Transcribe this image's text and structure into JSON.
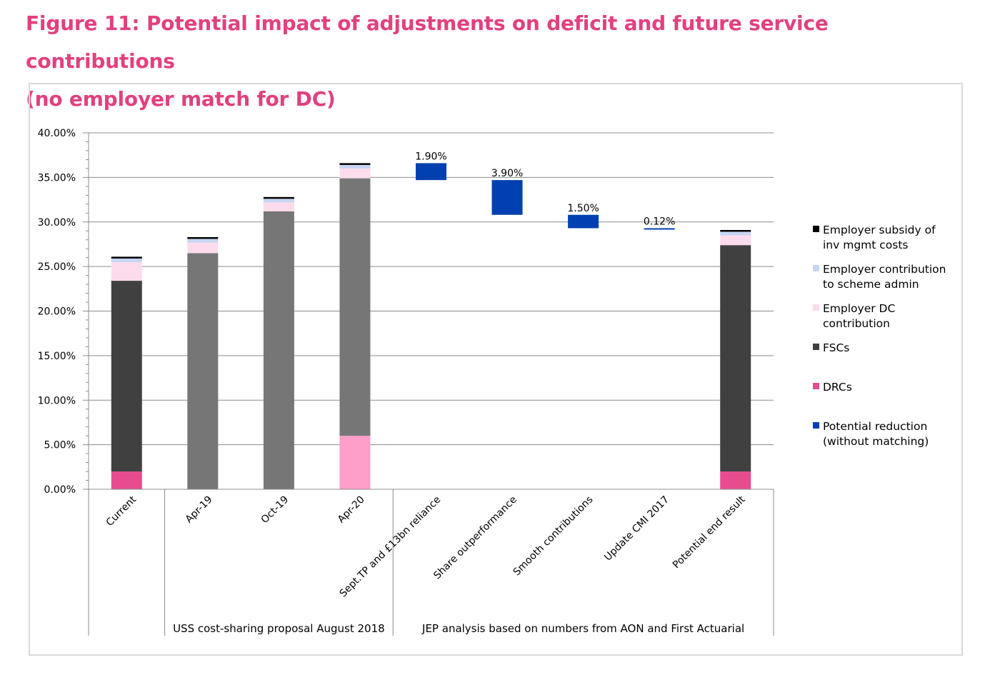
{
  "title_line1": "Figure 11: Potential impact of adjustments on deficit and future service contributions",
  "title_line2": "(no employer match for DC)",
  "chart_data": {
    "type": "bar",
    "stacked": true,
    "title": "Figure 11: Potential impact of adjustments on deficit and future service contributions (no employer match for DC)",
    "ylim": [
      0,
      40
    ],
    "ytick_labels": [
      "0.00%",
      "5.00%",
      "10.00%",
      "15.00%",
      "20.00%",
      "25.00%",
      "30.00%",
      "35.00%",
      "40.00%"
    ],
    "grid": true,
    "legend_position": "right",
    "categories": [
      "Current",
      "Apr-19",
      "Oct-19",
      "Apr-20",
      "Sept.TP and £13bn reliance",
      "Share outperformance",
      "Smooth contributions",
      "Update CMI 2017",
      "Potential end result"
    ],
    "groups": [
      {
        "label": "",
        "categories": [
          "Current"
        ]
      },
      {
        "label": "USS cost-sharing proposal August 2018",
        "categories": [
          "Apr-19",
          "Oct-19",
          "Apr-20"
        ]
      },
      {
        "label": "JEP analysis based on numbers from AON and First Actuarial",
        "categories": [
          "Sept.TP and £13bn reliance",
          "Share outperformance",
          "Smooth contributions",
          "Update CMI 2017",
          "Potential end result"
        ]
      }
    ],
    "series": [
      {
        "name": "DRCs",
        "color": "#e64c8e",
        "values": [
          2.0,
          0,
          0,
          6.0,
          0,
          0,
          0,
          0,
          2.0
        ]
      },
      {
        "name": "FSCs",
        "color": "#404040",
        "values": [
          21.4,
          26.5,
          31.2,
          28.9,
          0,
          0,
          0,
          0,
          25.4
        ]
      },
      {
        "name": "Employer DC contribution",
        "color": "#fcdcec",
        "values": [
          2.1,
          1.2,
          1.0,
          1.1,
          0,
          0,
          0,
          0,
          1.1
        ]
      },
      {
        "name": "Employer contribution to scheme admin",
        "color": "#c6d6f2",
        "values": [
          0.4,
          0.4,
          0.4,
          0.4,
          0,
          0,
          0,
          0,
          0.4
        ]
      },
      {
        "name": "Employer subsidy of inv mgmt costs",
        "color": "#000000",
        "values": [
          0.2,
          0.2,
          0.2,
          0.2,
          0,
          0,
          0,
          0,
          0.2
        ]
      },
      {
        "name": "Potential reduction (without matching)",
        "color": "#0040b0",
        "values": [
          0,
          0,
          0,
          0,
          1.9,
          3.9,
          1.5,
          0.12,
          0
        ]
      }
    ],
    "floating_bars": [
      {
        "category": "Sept.TP and £13bn reliance",
        "from": 34.7,
        "to": 36.6,
        "label": "1.90%"
      },
      {
        "category": "Share outperformance",
        "from": 30.8,
        "to": 34.7,
        "label": "3.90%"
      },
      {
        "category": "Smooth contributions",
        "from": 29.3,
        "to": 30.8,
        "label": "1.50%"
      },
      {
        "category": "Update CMI 2017",
        "from": 29.18,
        "to": 29.3,
        "label": "0.12%"
      }
    ],
    "bar_colors_by_category": {
      "Apr-19": {
        "FSCs": "#767676"
      },
      "Oct-19": {
        "FSCs": "#767676"
      },
      "Apr-20": {
        "FSCs": "#767676",
        "DRCs": "#fe9fc9"
      }
    },
    "legend": [
      {
        "lines": [
          "Employer subsidy of",
          "inv mgmt costs"
        ],
        "color": "#000000"
      },
      {
        "lines": [
          "Employer contribution",
          "to scheme admin"
        ],
        "color": "#c6d6f2"
      },
      {
        "lines": [
          "Employer DC",
          "contribution"
        ],
        "color": "#fcdcec"
      },
      {
        "lines": [
          "FSCs"
        ],
        "color": "#404040"
      },
      {
        "lines": [
          "DRCs"
        ],
        "color": "#e64c8e"
      },
      {
        "lines": [
          "Potential reduction",
          "(without matching)"
        ],
        "color": "#0040b0"
      }
    ]
  }
}
